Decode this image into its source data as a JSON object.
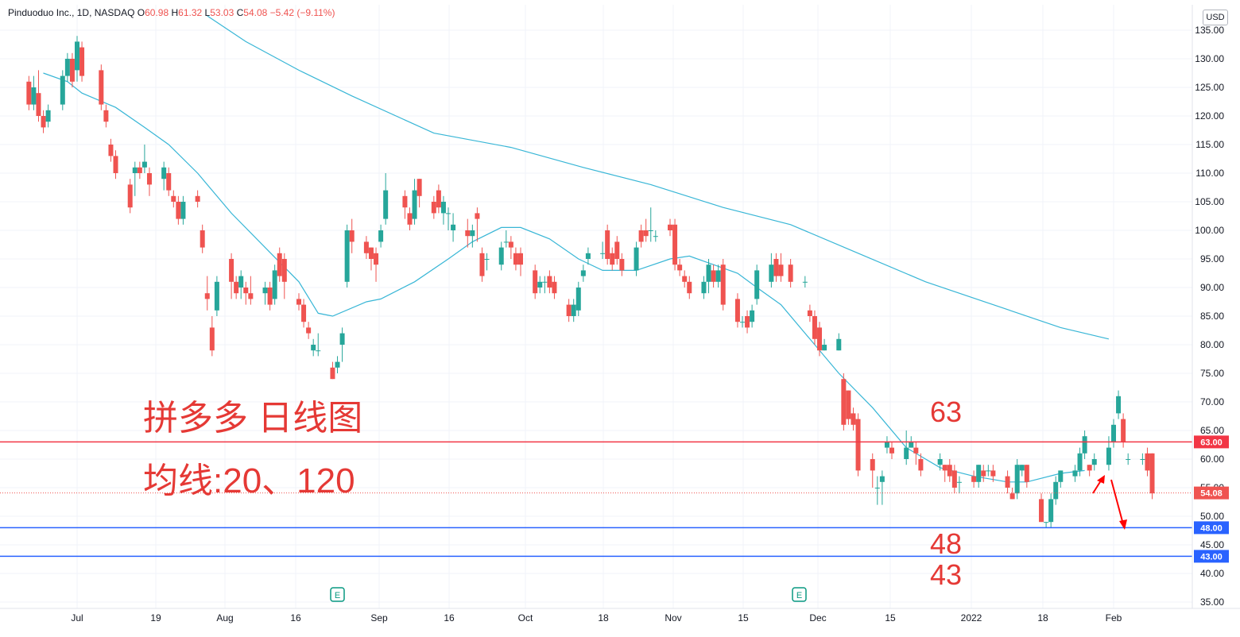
{
  "header": {
    "symbol": "Pinduoduo Inc., 1D, NASDAQ",
    "open_label": "O",
    "open": "60.98",
    "high_label": "H",
    "high": "61.32",
    "low_label": "L",
    "low": "53.03",
    "close_label": "C",
    "close": "54.08",
    "change": "−5.42 (−9.11%)",
    "currency": "USD"
  },
  "annotations": {
    "title": "拼多多 日线图",
    "ma_note": "均线:20、120",
    "level_63": "63",
    "level_48": "48",
    "level_43": "43",
    "earnings_marker": "E"
  },
  "colors": {
    "up": "#26a69a",
    "down": "#ef5350",
    "ma": "#38b6d6",
    "resistance": "#f23645",
    "support": "#2962ff",
    "annotation_text": "#e53935"
  },
  "chart_data": {
    "type": "candlestick",
    "y_axis": {
      "range": [
        33.5,
        137.5
      ],
      "ticks": [
        "135.00",
        "130.00",
        "125.00",
        "120.00",
        "115.00",
        "110.00",
        "105.00",
        "100.00",
        "95.00",
        "90.00",
        "85.00",
        "80.00",
        "75.00",
        "70.00",
        "65.00",
        "60.00",
        "55.00",
        "50.00",
        "45.00",
        "40.00",
        "35.00"
      ]
    },
    "x_axis": {
      "ticks": [
        "Jul",
        "19",
        "Aug",
        "16",
        "Sep",
        "16",
        "Oct",
        "18",
        "Nov",
        "15",
        "Dec",
        "15",
        "2022",
        "18",
        "Feb"
      ]
    },
    "horizontal_lines": [
      {
        "label": "63.00",
        "value": 63.0,
        "color": "#f23645"
      },
      {
        "label": "48.00",
        "value": 48.0,
        "color": "#2962ff"
      },
      {
        "label": "43.00",
        "value": 43.0,
        "color": "#2962ff"
      }
    ],
    "last_price": {
      "label": "54.08",
      "value": 54.08
    },
    "earnings_dates": [
      "2021-08-25",
      "2021-11-26"
    ],
    "series": [
      {
        "name": "MA20",
        "points": [
          [
            "2021-06-24",
            127.5
          ],
          [
            "2021-06-29",
            126
          ],
          [
            "2021-07-02",
            124
          ],
          [
            "2021-07-09",
            121.5
          ],
          [
            "2021-07-15",
            118
          ],
          [
            "2021-07-20",
            115
          ],
          [
            "2021-07-26",
            110
          ],
          [
            "2021-08-02",
            103
          ],
          [
            "2021-08-09",
            97
          ],
          [
            "2021-08-16",
            91
          ],
          [
            "2021-08-20",
            85.5
          ],
          [
            "2021-08-23",
            85
          ],
          [
            "2021-08-30",
            87.5
          ],
          [
            "2021-09-02",
            88
          ],
          [
            "2021-09-09",
            91
          ],
          [
            "2021-09-16",
            95
          ],
          [
            "2021-09-21",
            98
          ],
          [
            "2021-09-27",
            100.5
          ],
          [
            "2021-10-01",
            100.5
          ],
          [
            "2021-10-07",
            98.5
          ],
          [
            "2021-10-13",
            95
          ],
          [
            "2021-10-18",
            93
          ],
          [
            "2021-10-25",
            93
          ],
          [
            "2021-11-01",
            95
          ],
          [
            "2021-11-05",
            95.5
          ],
          [
            "2021-11-10",
            94
          ],
          [
            "2021-11-15",
            92.5
          ],
          [
            "2021-11-19",
            90
          ],
          [
            "2021-11-24",
            87
          ],
          [
            "2021-11-30",
            81
          ],
          [
            "2021-12-06",
            75
          ],
          [
            "2021-12-13",
            69
          ],
          [
            "2021-12-20",
            62
          ],
          [
            "2021-12-27",
            58.5
          ],
          [
            "2022-01-03",
            57
          ],
          [
            "2022-01-10",
            56
          ],
          [
            "2022-01-14",
            56
          ],
          [
            "2022-01-21",
            57.5
          ],
          [
            "2022-01-26",
            58
          ]
        ]
      },
      {
        "name": "MA120",
        "points": [
          [
            "2021-07-28",
            137.5
          ],
          [
            "2021-08-05",
            133
          ],
          [
            "2021-08-16",
            128
          ],
          [
            "2021-08-27",
            123.5
          ],
          [
            "2021-09-13",
            117
          ],
          [
            "2021-09-29",
            114.5
          ],
          [
            "2021-10-14",
            111
          ],
          [
            "2021-10-28",
            108
          ],
          [
            "2021-11-12",
            104
          ],
          [
            "2021-11-26",
            101
          ],
          [
            "2021-12-10",
            96
          ],
          [
            "2021-12-24",
            91
          ],
          [
            "2022-01-07",
            87
          ],
          [
            "2022-01-21",
            83
          ],
          [
            "2022-01-31",
            81
          ]
        ]
      }
    ],
    "candles": [
      [
        "2021-06-21",
        126,
        122,
        127,
        121
      ],
      [
        "2021-06-22",
        122,
        125,
        127,
        121
      ],
      [
        "2021-06-23",
        124,
        120,
        128,
        119
      ],
      [
        "2021-06-24",
        120,
        118,
        121,
        117
      ],
      [
        "2021-06-25",
        119,
        121,
        122,
        118
      ],
      [
        "2021-06-28",
        122,
        127,
        128,
        121
      ],
      [
        "2021-06-29",
        127,
        130,
        131,
        126
      ],
      [
        "2021-06-30",
        130,
        126,
        131,
        125
      ],
      [
        "2021-07-01",
        128,
        133,
        134,
        126
      ],
      [
        "2021-07-02",
        132,
        127,
        133,
        126
      ],
      [
        "2021-07-06",
        128,
        122,
        129,
        121
      ],
      [
        "2021-07-07",
        121,
        119,
        122,
        118
      ],
      [
        "2021-07-08",
        115,
        113,
        116,
        112
      ],
      [
        "2021-07-09",
        113,
        110,
        114,
        109
      ],
      [
        "2021-07-12",
        108,
        104,
        109,
        103
      ],
      [
        "2021-07-13",
        110,
        111,
        112,
        106
      ],
      [
        "2021-07-14",
        111,
        110,
        112,
        109
      ],
      [
        "2021-07-15",
        111,
        112,
        115,
        110
      ],
      [
        "2021-07-16",
        110,
        108,
        111,
        106
      ],
      [
        "2021-07-19",
        109,
        111,
        112,
        107
      ],
      [
        "2021-07-20",
        110,
        107,
        111,
        106
      ],
      [
        "2021-07-21",
        106,
        105,
        107,
        104
      ],
      [
        "2021-07-22",
        105,
        102,
        106,
        101
      ],
      [
        "2021-07-23",
        102,
        105,
        106,
        101
      ],
      [
        "2021-07-26",
        106,
        105,
        107,
        104
      ],
      [
        "2021-07-27",
        100,
        97,
        101,
        96
      ],
      [
        "2021-07-28",
        89,
        88,
        92,
        86
      ],
      [
        "2021-07-29",
        83,
        79,
        85,
        78
      ],
      [
        "2021-07-30",
        86,
        91,
        92,
        85
      ],
      [
        "2021-08-02",
        95,
        91,
        96,
        88
      ],
      [
        "2021-08-03",
        91,
        89,
        92,
        88
      ],
      [
        "2021-08-04",
        90,
        92,
        93,
        88
      ],
      [
        "2021-08-05",
        90,
        89,
        91,
        87
      ],
      [
        "2021-08-06",
        89,
        88,
        92,
        87
      ],
      [
        "2021-08-09",
        89,
        90,
        91,
        87
      ],
      [
        "2021-08-10",
        90,
        87,
        91,
        86
      ],
      [
        "2021-08-11",
        88,
        93,
        94,
        87
      ],
      [
        "2021-08-12",
        96,
        92,
        97,
        91
      ],
      [
        "2021-08-13",
        95,
        91,
        96,
        88
      ],
      [
        "2021-08-16",
        88,
        87,
        89,
        86
      ],
      [
        "2021-08-17",
        87,
        84,
        88,
        83
      ],
      [
        "2021-08-18",
        83,
        82,
        84,
        81
      ],
      [
        "2021-08-19",
        79,
        80,
        81,
        78
      ],
      [
        "2021-08-20",
        79,
        79,
        82,
        78
      ],
      [
        "2021-08-23",
        76,
        74,
        77,
        74
      ],
      [
        "2021-08-24",
        76,
        77,
        78,
        75
      ],
      [
        "2021-08-25",
        80,
        82,
        83,
        77
      ],
      [
        "2021-08-26",
        91,
        100,
        101,
        90
      ],
      [
        "2021-08-27",
        100,
        98,
        102,
        96
      ],
      [
        "2021-08-30",
        98,
        96,
        99,
        95
      ],
      [
        "2021-08-31",
        97,
        95,
        97,
        93
      ],
      [
        "2021-09-01",
        96,
        94,
        97,
        91
      ],
      [
        "2021-09-02",
        98,
        100,
        101,
        97
      ],
      [
        "2021-09-03",
        102,
        107,
        110,
        101
      ],
      [
        "2021-09-07",
        106,
        104,
        107,
        102
      ],
      [
        "2021-09-08",
        103,
        101,
        104,
        100
      ],
      [
        "2021-09-09",
        102,
        107,
        109,
        101
      ],
      [
        "2021-09-10",
        109,
        106,
        109,
        104
      ],
      [
        "2021-09-13",
        105,
        103,
        106,
        102
      ],
      [
        "2021-09-14",
        107,
        104,
        108,
        103
      ],
      [
        "2021-09-15",
        103,
        105,
        106,
        101
      ],
      [
        "2021-09-16",
        103,
        103,
        104,
        100
      ],
      [
        "2021-09-17",
        100,
        101,
        103,
        98
      ],
      [
        "2021-09-20",
        100,
        99,
        102,
        97
      ],
      [
        "2021-09-21",
        99,
        100,
        101,
        97
      ],
      [
        "2021-09-22",
        103,
        102,
        104,
        98
      ],
      [
        "2021-09-23",
        96,
        92,
        97,
        91
      ],
      [
        "2021-09-24",
        95,
        95,
        96,
        93
      ],
      [
        "2021-09-27",
        94,
        97,
        98,
        93
      ],
      [
        "2021-09-28",
        98,
        98,
        100,
        97
      ],
      [
        "2021-09-29",
        98,
        97,
        99,
        95
      ],
      [
        "2021-09-30",
        96,
        94,
        97,
        93
      ],
      [
        "2021-10-01",
        96,
        94,
        97,
        92
      ],
      [
        "2021-10-04",
        93,
        89,
        94,
        88
      ],
      [
        "2021-10-05",
        90,
        91,
        92,
        89
      ],
      [
        "2021-10-06",
        91,
        91,
        92,
        89
      ],
      [
        "2021-10-07",
        92,
        90,
        93,
        89
      ],
      [
        "2021-10-08",
        91,
        89,
        92,
        88
      ],
      [
        "2021-10-11",
        87,
        85,
        88,
        84
      ],
      [
        "2021-10-12",
        85,
        87,
        88,
        84
      ],
      [
        "2021-10-13",
        86,
        90,
        91,
        85
      ],
      [
        "2021-10-14",
        92,
        93,
        94,
        91
      ],
      [
        "2021-10-15",
        95,
        96,
        97,
        94
      ],
      [
        "2021-10-18",
        96,
        96,
        98,
        95
      ],
      [
        "2021-10-19",
        100,
        95,
        101,
        94
      ],
      [
        "2021-10-20",
        96,
        94,
        97,
        93
      ],
      [
        "2021-10-21",
        98,
        95,
        99,
        94
      ],
      [
        "2021-10-22",
        95,
        93,
        96,
        92
      ],
      [
        "2021-10-25",
        93,
        97,
        98,
        92
      ],
      [
        "2021-10-26",
        100,
        98,
        101,
        97
      ],
      [
        "2021-10-27",
        100,
        99,
        102,
        98
      ],
      [
        "2021-10-28",
        100,
        100,
        104,
        98
      ],
      [
        "2021-10-29",
        99,
        99,
        100,
        98
      ],
      [
        "2021-11-01",
        101,
        100,
        102,
        99
      ],
      [
        "2021-11-02",
        101,
        94,
        102,
        93
      ],
      [
        "2021-11-03",
        94,
        93,
        95,
        92
      ],
      [
        "2021-11-04",
        92,
        91,
        93,
        90
      ],
      [
        "2021-11-05",
        91,
        89,
        92,
        88
      ],
      [
        "2021-11-08",
        89,
        91,
        92,
        88
      ],
      [
        "2021-11-09",
        91,
        94,
        95,
        89
      ],
      [
        "2021-11-10",
        93,
        91,
        94,
        90
      ],
      [
        "2021-11-11",
        91,
        93,
        94,
        90
      ],
      [
        "2021-11-12",
        94,
        87,
        95,
        86
      ],
      [
        "2021-11-15",
        88,
        84,
        89,
        83
      ],
      [
        "2021-11-16",
        84,
        84,
        85,
        83
      ],
      [
        "2021-11-17",
        85,
        83,
        86,
        82
      ],
      [
        "2021-11-18",
        84,
        86,
        87,
        83
      ],
      [
        "2021-11-19",
        88,
        93,
        94,
        87
      ],
      [
        "2021-11-22",
        91,
        94,
        96,
        90
      ],
      [
        "2021-11-23",
        95,
        92,
        96,
        91
      ],
      [
        "2021-11-24",
        94,
        92,
        96,
        91
      ],
      [
        "2021-11-26",
        94,
        91,
        95,
        90
      ],
      [
        "2021-11-29",
        91,
        91,
        92,
        90
      ],
      [
        "2021-11-30",
        86,
        85,
        87,
        84
      ],
      [
        "2021-12-01",
        85,
        81,
        86,
        80
      ],
      [
        "2021-12-02",
        83,
        79,
        84,
        78
      ],
      [
        "2021-12-03",
        79,
        80,
        81,
        79
      ],
      [
        "2021-12-06",
        79,
        81,
        82,
        79
      ],
      [
        "2021-12-07",
        74,
        66,
        75,
        65
      ],
      [
        "2021-12-08",
        72,
        67,
        72,
        66
      ],
      [
        "2021-12-09",
        68,
        66,
        69,
        65
      ],
      [
        "2021-12-10",
        67,
        58,
        68,
        57
      ],
      [
        "2021-12-13",
        60,
        58,
        61,
        55
      ],
      [
        "2021-12-14",
        55,
        55,
        57,
        52
      ],
      [
        "2021-12-15",
        56,
        57,
        58,
        52
      ],
      [
        "2021-12-16",
        62,
        63,
        64,
        61
      ],
      [
        "2021-12-17",
        62,
        61,
        63,
        60
      ],
      [
        "2021-12-20",
        60,
        62,
        65,
        59
      ],
      [
        "2021-12-21",
        62,
        63,
        64,
        62
      ],
      [
        "2021-12-22",
        62,
        61,
        63,
        59
      ],
      [
        "2021-12-23",
        60,
        58,
        61,
        57
      ],
      [
        "2021-12-27",
        59,
        60,
        61,
        58
      ],
      [
        "2021-12-28",
        59,
        58,
        59,
        56
      ],
      [
        "2021-12-29",
        59,
        57,
        60,
        56
      ],
      [
        "2021-12-30",
        58,
        55,
        59,
        54
      ],
      [
        "2021-12-31",
        56,
        56,
        57,
        54
      ],
      [
        "2022-01-03",
        57,
        56,
        58,
        55
      ],
      [
        "2022-01-04",
        56,
        59,
        59,
        55
      ],
      [
        "2022-01-05",
        58,
        57,
        59,
        56
      ],
      [
        "2022-01-06",
        58,
        58,
        59,
        57
      ],
      [
        "2022-01-07",
        58,
        57,
        59,
        56
      ],
      [
        "2022-01-10",
        57,
        55,
        58,
        54
      ],
      [
        "2022-01-11",
        54,
        53,
        55,
        53
      ],
      [
        "2022-01-12",
        54,
        59,
        60,
        53
      ],
      [
        "2022-01-13",
        58,
        59,
        59,
        57
      ],
      [
        "2022-01-14",
        59,
        56,
        59,
        55
      ],
      [
        "2022-01-17",
        53,
        49,
        54,
        49
      ],
      [
        "2022-01-18",
        49,
        49,
        49,
        48
      ],
      [
        "2022-01-19",
        49,
        53,
        54,
        48
      ],
      [
        "2022-01-20",
        53,
        56,
        57,
        52
      ],
      [
        "2022-01-21",
        56,
        58,
        58,
        55
      ],
      [
        "2022-01-24",
        57,
        58,
        59,
        56
      ],
      [
        "2022-01-25",
        58,
        61,
        62,
        57
      ],
      [
        "2022-01-26",
        61,
        64,
        65,
        60
      ],
      [
        "2022-01-27",
        59,
        58,
        59,
        57
      ],
      [
        "2022-01-28",
        59,
        60,
        61,
        58
      ],
      [
        "2022-01-31",
        59,
        62,
        64,
        58
      ],
      [
        "2022-02-01",
        63,
        66,
        67,
        62
      ],
      [
        "2022-02-02",
        68,
        71,
        72,
        67
      ],
      [
        "2022-02-03",
        67,
        63,
        68,
        62
      ],
      [
        "2022-02-04",
        60,
        60,
        61,
        59
      ],
      [
        "2022-02-07",
        60,
        60,
        61,
        59
      ],
      [
        "2022-02-08",
        61,
        58,
        62,
        57
      ],
      [
        "2022-02-09",
        61,
        54,
        61,
        53
      ]
    ]
  }
}
